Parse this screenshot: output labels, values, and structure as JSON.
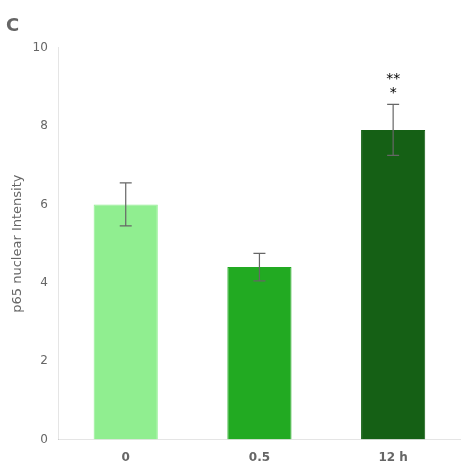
{
  "chart_data": {
    "type": "bar",
    "title": "C",
    "ylabel": "p65 nuclear Intensity",
    "categories": [
      "0",
      "0.5",
      "12 h"
    ],
    "values": [
      6.0,
      4.4,
      7.9
    ],
    "errors": [
      0.55,
      0.35,
      0.65
    ],
    "colors": [
      "#90EE90",
      "#22AA22",
      "#156015"
    ],
    "ylim": [
      0,
      10
    ],
    "yticks": [
      0,
      2,
      4,
      6,
      8,
      10
    ],
    "grid": false,
    "annotations": [
      {
        "category": "12 h",
        "text": "*"
      },
      {
        "category": "12 h",
        "text": "**"
      }
    ]
  }
}
